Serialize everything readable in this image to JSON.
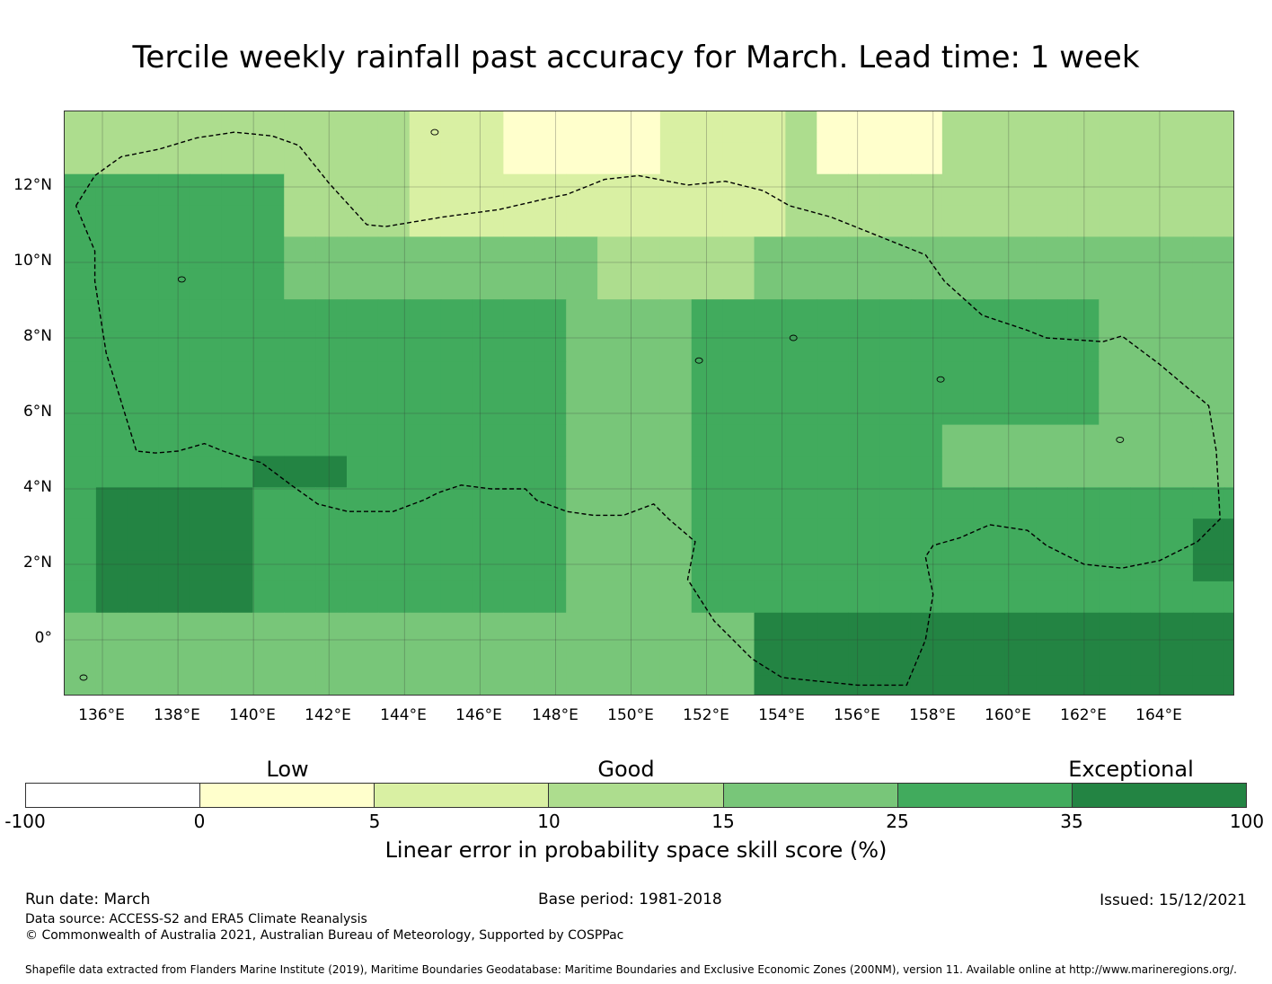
{
  "title": "Tercile weekly rainfall past accuracy for March. Lead time: 1 week",
  "map": {
    "lat_labels": [
      "12°N",
      "10°N",
      "8°N",
      "6°N",
      "4°N",
      "2°N",
      "0°"
    ],
    "lon_labels": [
      "136°E",
      "138°E",
      "140°E",
      "142°E",
      "144°E",
      "146°E",
      "148°E",
      "150°E",
      "152°E",
      "154°E",
      "156°E",
      "158°E",
      "160°E",
      "162°E",
      "164°E"
    ],
    "extent": {
      "lon_min": 135.0,
      "lon_max": 166.0,
      "lat_min": -1.5,
      "lat_max": 14.0
    },
    "region_outline": "Palau / Federated States of Micronesia EEZ (dashed)"
  },
  "categories": [
    "Low",
    "Good",
    "Exceptional"
  ],
  "colorbar": {
    "ticks": [
      "-100",
      "0",
      "5",
      "10",
      "15",
      "25",
      "35",
      "100"
    ],
    "colors": [
      "#ffffff",
      "#ffffcc",
      "#d9f0a3",
      "#addd8e",
      "#78c679",
      "#41ab5d",
      "#238443"
    ],
    "label": "Linear error in probability space skill score (%)"
  },
  "footer": {
    "run_date": "Run date: March",
    "base_period": "Base period: 1981-2018",
    "issued": "Issued: 15/12/2021",
    "data_source": "Data source: ACCESS-S2 and ERA5 Climate Reanalysis",
    "copyright": "© Commonwealth of Australia 2021, Australian Bureau of Meteorology, Supported by COSPPac",
    "shapefile": "Shapefile data extracted from Flanders Marine Institute (2019), Maritime Boundaries Geodatabase: Maritime Boundaries and Exclusive Economic Zones (200NM), version 11. Available online at http://www.marineregions.org/."
  }
}
